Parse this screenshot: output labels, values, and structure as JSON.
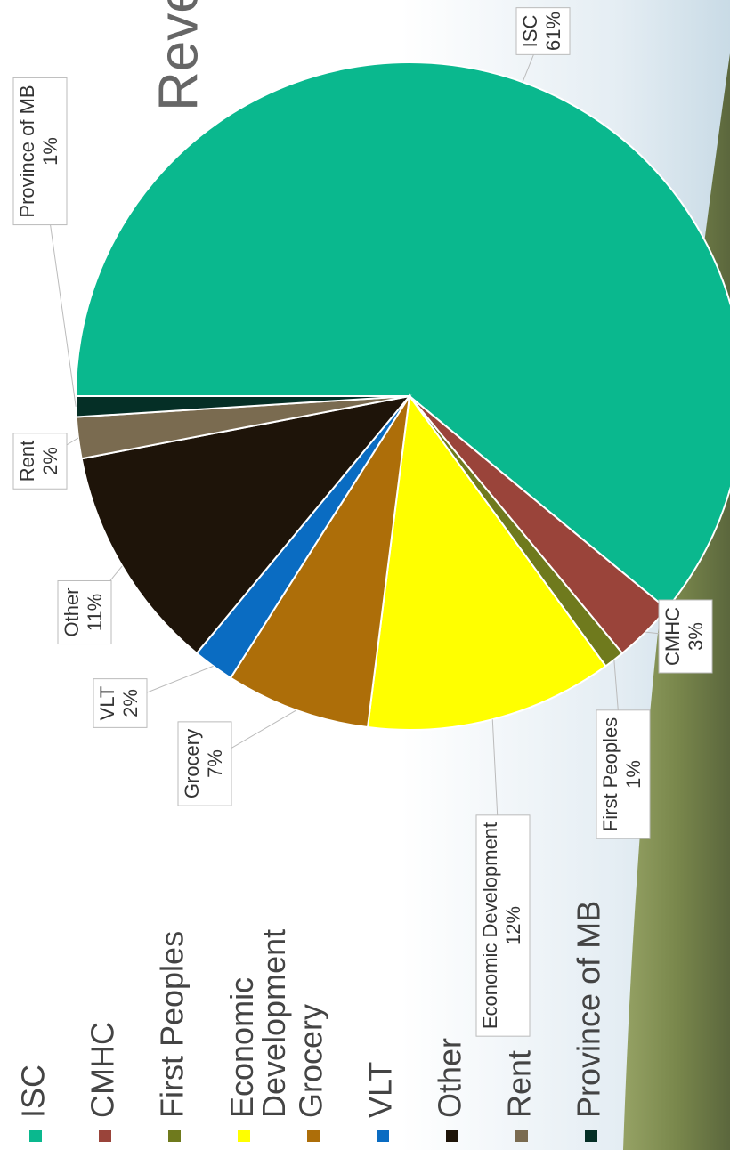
{
  "chart_data": {
    "type": "pie",
    "title": "Reve",
    "categories": [
      "ISC",
      "CMHC",
      "First Peoples",
      "Economic Development",
      "Grocery",
      "VLT",
      "Other",
      "Rent",
      "Province of MB"
    ],
    "values": [
      61,
      3,
      1,
      12,
      7,
      2,
      11,
      2,
      1
    ],
    "value_labels": [
      "61%",
      "3%",
      "1%",
      "12%",
      "7%",
      "2%",
      "11%",
      "2%",
      "1%"
    ],
    "colors": [
      "#0ab88e",
      "#9a443a",
      "#6f7a1d",
      "#ffff00",
      "#ad6e09",
      "#0a6cc2",
      "#1e1409",
      "#7a6b50",
      "#052f26"
    ],
    "legend": "left"
  }
}
